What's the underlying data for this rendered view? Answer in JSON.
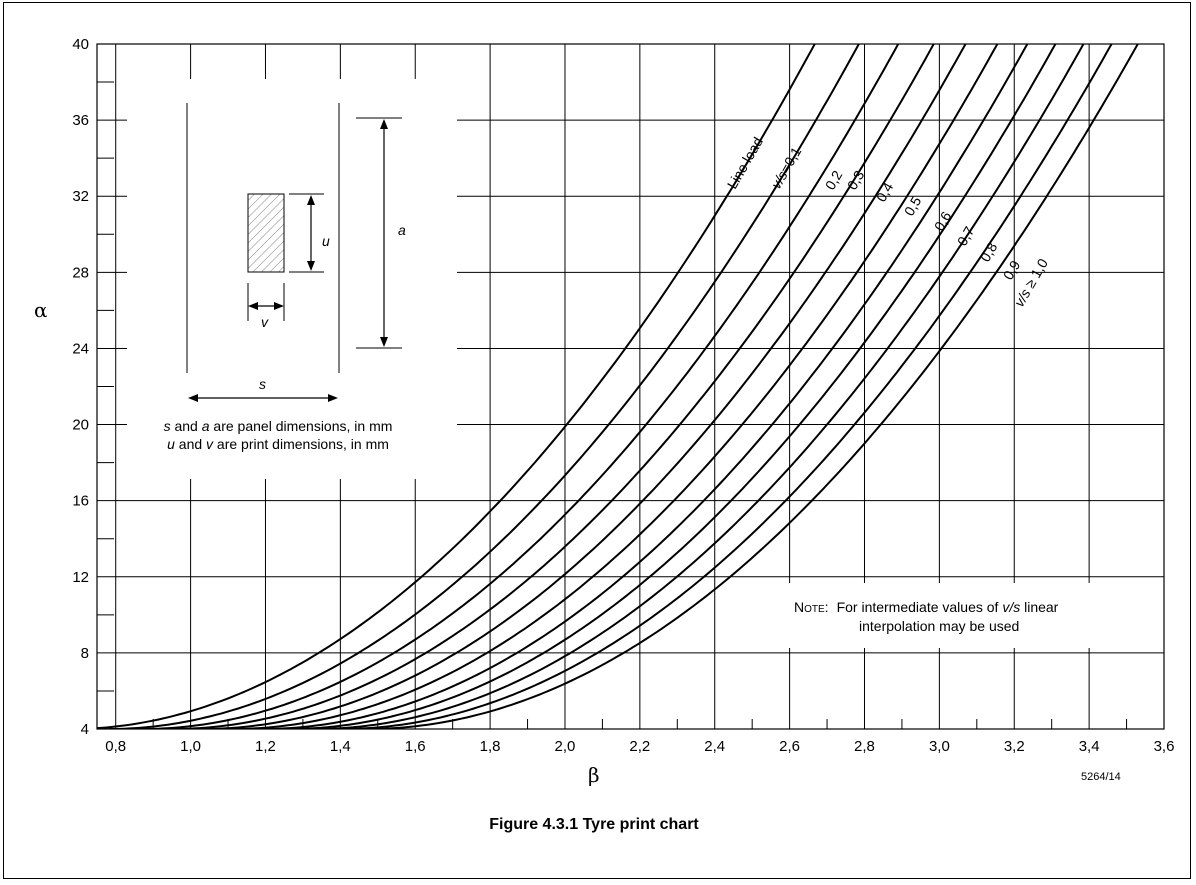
{
  "chart_data": {
    "type": "line",
    "caption": "Figure 4.3.1 Tyre print chart",
    "drawing_code": "5264/14",
    "xlabel": "β",
    "ylabel": "α",
    "xlim": [
      0.75,
      3.6
    ],
    "ylim": [
      4,
      40
    ],
    "grid": true,
    "x_ticks": [
      "0,8",
      "1,0",
      "1,2",
      "1,4",
      "1,6",
      "1,8",
      "2,0",
      "2,2",
      "2,4",
      "2,6",
      "2,8",
      "3,0",
      "3,2",
      "3,4",
      "3,6"
    ],
    "y_ticks": [
      "4",
      "8",
      "12",
      "16",
      "20",
      "24",
      "28",
      "32",
      "36",
      "40"
    ],
    "series": [
      {
        "name": "Line load",
        "x0": 0.68,
        "x40": 2.667
      },
      {
        "name": "v/s=0,1",
        "x0": 0.78,
        "x40": 2.785
      },
      {
        "name": "0,2",
        "x0": 0.87,
        "x40": 2.89
      },
      {
        "name": "0,3",
        "x0": 0.95,
        "x40": 2.985
      },
      {
        "name": "0,4",
        "x0": 1.03,
        "x40": 3.07
      },
      {
        "name": "0,5",
        "x0": 1.11,
        "x40": 3.155
      },
      {
        "name": "0,6",
        "x0": 1.19,
        "x40": 3.235
      },
      {
        "name": "0,7",
        "x0": 1.26,
        "x40": 3.31
      },
      {
        "name": "0,8",
        "x0": 1.33,
        "x40": 3.385
      },
      {
        "name": "0,9",
        "x0": 1.4,
        "x40": 3.46
      },
      {
        "name": "v/s ≥ 1,0",
        "x0": 1.47,
        "x40": 3.53
      }
    ]
  },
  "labels": {
    "line_load": "Line load",
    "vs_prefix": "v/s",
    "vs01": "=0,1",
    "v02": "0,2",
    "v03": "0,3",
    "v04": "0,4",
    "v05": "0,5",
    "v06": "0,6",
    "v07": "0,7",
    "v08": "0,8",
    "v09": "0,9",
    "vs10": " ≥ 1,0"
  },
  "inset": {
    "u": "u",
    "v": "v",
    "a": "a",
    "s": "s",
    "line1_var1": "s",
    "line1_and": " and ",
    "line1_var2": "a",
    "line1_rest": " are panel dimensions, in mm",
    "line2_var1": "u",
    "line2_and": " and ",
    "line2_var2": "v",
    "line2_rest": " are print dimensions, in mm"
  },
  "note": {
    "head": "Note:",
    "line1_pre": "For intermediate values of ",
    "line1_var": "v/s",
    "line1_post": " linear",
    "line2": "interpolation may be used"
  }
}
